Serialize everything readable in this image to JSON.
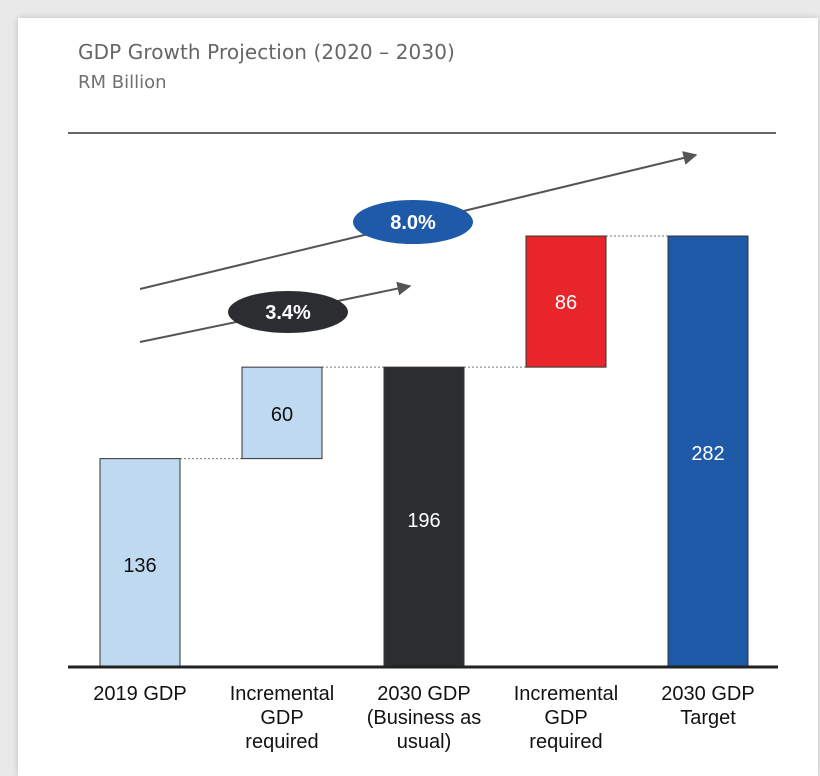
{
  "chart_data": {
    "type": "waterfall",
    "title": "GDP Growth Projection (2020 – 2030)",
    "subtitle": "RM Billion",
    "categories": [
      "2019 GDP",
      "Incremental GDP required",
      "2030 GDP (Business as usual)",
      "Incremental GDP required",
      "2030 GDP Target"
    ],
    "category_lines": [
      [
        "2019 GDP"
      ],
      [
        "Incremental",
        "GDP",
        "required"
      ],
      [
        "2030 GDP",
        "(Business as",
        "usual)"
      ],
      [
        "Incremental",
        "GDP",
        "required"
      ],
      [
        "2030 GDP",
        "Target"
      ]
    ],
    "bars": [
      {
        "label": "136",
        "value": 136,
        "base": 0,
        "kind": "total",
        "color": "#bfd9f0"
      },
      {
        "label": "60",
        "value": 60,
        "base": 136,
        "kind": "increment",
        "color": "#bfd9f0"
      },
      {
        "label": "196",
        "value": 196,
        "base": 0,
        "kind": "total",
        "color": "#2b2d31"
      },
      {
        "label": "86",
        "value": 86,
        "base": 196,
        "kind": "increment",
        "color": "#e8252a"
      },
      {
        "label": "282",
        "value": 282,
        "base": 0,
        "kind": "total",
        "color": "#1f5aa8"
      }
    ],
    "annotations": [
      {
        "text": "3.4%",
        "fill": "#2b2d31"
      },
      {
        "text": "8.0%",
        "fill": "#1f5aa8"
      }
    ],
    "ylim": [
      0,
      282
    ],
    "grid": false
  }
}
